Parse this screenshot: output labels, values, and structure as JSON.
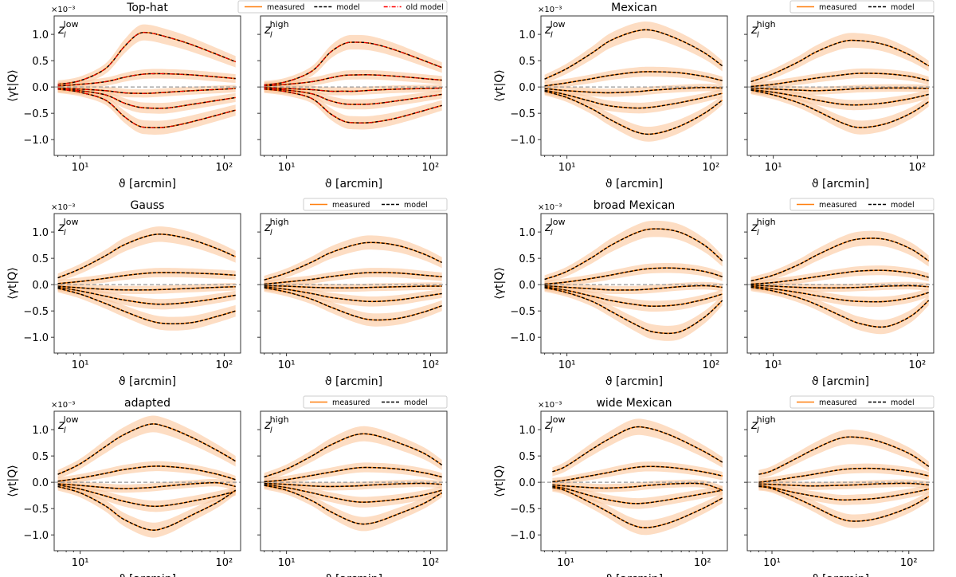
{
  "chart_data": {
    "type": "line",
    "axis_common": {
      "xlabel": "ϑ [arcmin]",
      "ylabel": "⟨γt|Q⟩",
      "y_multiplier": "×10⁻³",
      "x_scale": "log",
      "x_ticks": [
        "10¹",
        "10²"
      ],
      "y_ticks": [
        "1.0",
        "0.5",
        "0.0",
        "−0.5",
        "−1.0"
      ],
      "y_tick_values": [
        1.0,
        0.5,
        0.0,
        -0.5,
        -1.0
      ],
      "ylim": [
        -1.3,
        1.35
      ],
      "zero_line": "dashed gray",
      "grid": false
    },
    "colors": {
      "measured": "#ff7f0e",
      "band": "#fcc79b",
      "model": "#000000",
      "old_model": "#ff0000",
      "zero_line": "#999999"
    },
    "groups": [
      {
        "title": "Top-hat",
        "legend": [
          "measured",
          "model",
          "old model"
        ],
        "xlim": [
          6.6,
          130
        ],
        "x": [
          7,
          10,
          15,
          20,
          25,
          30,
          40,
          60,
          120
        ],
        "panels": [
          {
            "z_label": "z",
            "z_sub": "l",
            "z_sup": "low",
            "curves": [
              [
                0.05,
                0.12,
                0.35,
                0.75,
                1.0,
                1.03,
                0.95,
                0.8,
                0.48
              ],
              [
                0.02,
                0.05,
                0.1,
                0.18,
                0.23,
                0.25,
                0.25,
                0.23,
                0.16
              ],
              [
                -0.02,
                -0.04,
                -0.07,
                -0.11,
                -0.12,
                -0.12,
                -0.1,
                -0.07,
                -0.03
              ],
              [
                -0.03,
                -0.07,
                -0.15,
                -0.3,
                -0.38,
                -0.4,
                -0.4,
                -0.33,
                -0.2
              ],
              [
                -0.04,
                -0.1,
                -0.25,
                -0.55,
                -0.73,
                -0.77,
                -0.76,
                -0.66,
                -0.44
              ]
            ]
          },
          {
            "z_label": "z",
            "z_sub": "l",
            "z_sup": "high",
            "curves": [
              [
                0.04,
                0.1,
                0.3,
                0.65,
                0.82,
                0.85,
                0.82,
                0.68,
                0.37
              ],
              [
                0.02,
                0.05,
                0.1,
                0.17,
                0.22,
                0.23,
                0.23,
                0.2,
                0.13
              ],
              [
                -0.01,
                -0.03,
                -0.05,
                -0.08,
                -0.08,
                -0.08,
                -0.06,
                -0.04,
                -0.02
              ],
              [
                -0.03,
                -0.06,
                -0.13,
                -0.26,
                -0.32,
                -0.33,
                -0.32,
                -0.26,
                -0.14
              ],
              [
                -0.04,
                -0.09,
                -0.22,
                -0.5,
                -0.65,
                -0.68,
                -0.67,
                -0.58,
                -0.35
              ]
            ]
          }
        ]
      },
      {
        "title": "Mexican",
        "legend": [
          "measured",
          "model"
        ],
        "xlim": [
          6.6,
          130
        ],
        "x": [
          7,
          10,
          15,
          20,
          30,
          40,
          60,
          90,
          120
        ],
        "panels": [
          {
            "z_label": "z",
            "z_sub": "l",
            "z_sup": "low",
            "curves": [
              [
                0.15,
                0.35,
                0.65,
                0.88,
                1.06,
                1.07,
                0.9,
                0.65,
                0.4
              ],
              [
                0.02,
                0.08,
                0.16,
                0.22,
                0.28,
                0.29,
                0.27,
                0.2,
                0.12
              ],
              [
                -0.03,
                -0.07,
                -0.1,
                -0.11,
                -0.09,
                -0.06,
                -0.03,
                -0.01,
                -0.02
              ],
              [
                -0.06,
                -0.15,
                -0.28,
                -0.36,
                -0.4,
                -0.38,
                -0.3,
                -0.2,
                -0.12
              ],
              [
                -0.08,
                -0.2,
                -0.42,
                -0.62,
                -0.85,
                -0.89,
                -0.75,
                -0.5,
                -0.25
              ]
            ]
          },
          {
            "z_label": "z",
            "z_sub": "l",
            "z_sup": "high",
            "curves": [
              [
                0.1,
                0.25,
                0.48,
                0.67,
                0.86,
                0.88,
                0.8,
                0.6,
                0.4
              ],
              [
                0.01,
                0.05,
                0.12,
                0.17,
                0.23,
                0.26,
                0.25,
                0.2,
                0.12
              ],
              [
                -0.02,
                -0.04,
                -0.06,
                -0.07,
                -0.05,
                -0.03,
                -0.02,
                -0.02,
                -0.03
              ],
              [
                -0.05,
                -0.1,
                -0.18,
                -0.25,
                -0.33,
                -0.34,
                -0.3,
                -0.22,
                -0.14
              ],
              [
                -0.06,
                -0.15,
                -0.3,
                -0.45,
                -0.68,
                -0.77,
                -0.7,
                -0.5,
                -0.28
              ]
            ]
          }
        ]
      },
      {
        "title": "Gauss",
        "legend": [
          "measured",
          "model"
        ],
        "xlim": [
          6.6,
          130
        ],
        "x": [
          7,
          10,
          15,
          20,
          30,
          40,
          60,
          90,
          120
        ],
        "panels": [
          {
            "z_label": "z",
            "z_sub": "l",
            "z_sup": "low",
            "curves": [
              [
                0.13,
                0.3,
                0.55,
                0.75,
                0.93,
                0.95,
                0.85,
                0.68,
                0.53
              ],
              [
                0.02,
                0.06,
                0.12,
                0.17,
                0.22,
                0.23,
                0.22,
                0.2,
                0.18
              ],
              [
                -0.03,
                -0.06,
                -0.09,
                -0.1,
                -0.1,
                -0.09,
                -0.07,
                -0.05,
                -0.04
              ],
              [
                -0.05,
                -0.12,
                -0.22,
                -0.29,
                -0.36,
                -0.37,
                -0.33,
                -0.26,
                -0.2
              ],
              [
                -0.07,
                -0.18,
                -0.36,
                -0.5,
                -0.68,
                -0.74,
                -0.72,
                -0.6,
                -0.5
              ]
            ]
          },
          {
            "z_label": "z",
            "z_sub": "l",
            "z_sup": "high",
            "curves": [
              [
                0.09,
                0.22,
                0.43,
                0.6,
                0.76,
                0.8,
                0.74,
                0.58,
                0.42
              ],
              [
                0.01,
                0.05,
                0.1,
                0.15,
                0.21,
                0.23,
                0.22,
                0.18,
                0.15
              ],
              [
                -0.02,
                -0.03,
                -0.05,
                -0.06,
                -0.06,
                -0.05,
                -0.04,
                -0.03,
                -0.03
              ],
              [
                -0.04,
                -0.09,
                -0.17,
                -0.24,
                -0.3,
                -0.32,
                -0.29,
                -0.22,
                -0.17
              ],
              [
                -0.06,
                -0.14,
                -0.28,
                -0.42,
                -0.6,
                -0.67,
                -0.64,
                -0.52,
                -0.4
              ]
            ]
          }
        ]
      },
      {
        "title": "broad Mexican",
        "legend": [
          "measured",
          "model"
        ],
        "xlim": [
          6.6,
          130
        ],
        "x": [
          7,
          10,
          15,
          20,
          30,
          40,
          60,
          90,
          120
        ],
        "panels": [
          {
            "z_label": "z",
            "z_sub": "l",
            "z_sup": "low",
            "curves": [
              [
                0.1,
                0.25,
                0.52,
                0.74,
                0.98,
                1.06,
                1.0,
                0.75,
                0.45
              ],
              [
                0.01,
                0.05,
                0.12,
                0.18,
                0.27,
                0.31,
                0.31,
                0.25,
                0.15
              ],
              [
                -0.02,
                -0.05,
                -0.08,
                -0.1,
                -0.1,
                -0.08,
                -0.04,
                -0.02,
                -0.05
              ],
              [
                -0.04,
                -0.11,
                -0.22,
                -0.3,
                -0.38,
                -0.41,
                -0.38,
                -0.28,
                -0.18
              ],
              [
                -0.06,
                -0.15,
                -0.32,
                -0.5,
                -0.76,
                -0.9,
                -0.9,
                -0.62,
                -0.3
              ]
            ]
          },
          {
            "z_label": "z",
            "z_sub": "l",
            "z_sup": "high",
            "curves": [
              [
                0.07,
                0.18,
                0.38,
                0.56,
                0.78,
                0.87,
                0.86,
                0.68,
                0.45
              ],
              [
                0.01,
                0.04,
                0.1,
                0.15,
                0.22,
                0.26,
                0.27,
                0.22,
                0.14
              ],
              [
                -0.01,
                -0.03,
                -0.05,
                -0.06,
                -0.06,
                -0.05,
                -0.03,
                -0.02,
                -0.04
              ],
              [
                -0.03,
                -0.08,
                -0.15,
                -0.21,
                -0.29,
                -0.32,
                -0.32,
                -0.25,
                -0.15
              ],
              [
                -0.05,
                -0.12,
                -0.25,
                -0.38,
                -0.6,
                -0.74,
                -0.8,
                -0.6,
                -0.3
              ]
            ]
          }
        ]
      },
      {
        "title": "adapted",
        "legend": [
          "measured",
          "model"
        ],
        "xlim": [
          6.6,
          130
        ],
        "x": [
          7,
          10,
          15,
          20,
          30,
          40,
          60,
          90,
          120
        ],
        "panels": [
          {
            "z_label": "z",
            "z_sub": "l",
            "z_sup": "low",
            "curves": [
              [
                0.15,
                0.35,
                0.68,
                0.9,
                1.1,
                1.05,
                0.85,
                0.6,
                0.4
              ],
              [
                0.02,
                0.08,
                0.17,
                0.24,
                0.3,
                0.3,
                0.25,
                0.15,
                0.05
              ],
              [
                -0.03,
                -0.06,
                -0.1,
                -0.12,
                -0.1,
                -0.07,
                -0.03,
                -0.01,
                -0.08
              ],
              [
                -0.05,
                -0.13,
                -0.26,
                -0.36,
                -0.45,
                -0.44,
                -0.36,
                -0.26,
                -0.17
              ],
              [
                -0.08,
                -0.2,
                -0.45,
                -0.7,
                -0.9,
                -0.85,
                -0.62,
                -0.38,
                -0.15
              ]
            ]
          },
          {
            "z_label": "z",
            "z_sub": "l",
            "z_sup": "high",
            "curves": [
              [
                0.1,
                0.25,
                0.5,
                0.7,
                0.9,
                0.9,
                0.75,
                0.55,
                0.33
              ],
              [
                0.01,
                0.05,
                0.13,
                0.19,
                0.27,
                0.28,
                0.25,
                0.18,
                0.1
              ],
              [
                -0.02,
                -0.04,
                -0.07,
                -0.08,
                -0.07,
                -0.05,
                -0.03,
                -0.02,
                -0.04
              ],
              [
                -0.04,
                -0.1,
                -0.2,
                -0.28,
                -0.37,
                -0.37,
                -0.32,
                -0.24,
                -0.15
              ],
              [
                -0.06,
                -0.15,
                -0.35,
                -0.55,
                -0.77,
                -0.77,
                -0.6,
                -0.4,
                -0.2
              ]
            ]
          }
        ]
      },
      {
        "title": "wide Mexican",
        "legend": [
          "measured",
          "model"
        ],
        "xlim": [
          6.6,
          152
        ],
        "x": [
          8,
          10,
          15,
          20,
          30,
          40,
          60,
          100,
          140
        ],
        "panels": [
          {
            "z_label": "z",
            "z_sub": "l",
            "z_sup": "low",
            "curves": [
              [
                0.2,
                0.3,
                0.6,
                0.8,
                1.03,
                1.03,
                0.88,
                0.6,
                0.38
              ],
              [
                0.01,
                0.04,
                0.12,
                0.18,
                0.27,
                0.3,
                0.28,
                0.2,
                0.12
              ],
              [
                -0.05,
                -0.07,
                -0.1,
                -0.11,
                -0.09,
                -0.06,
                -0.03,
                -0.03,
                -0.15
              ],
              [
                -0.08,
                -0.12,
                -0.25,
                -0.33,
                -0.4,
                -0.39,
                -0.32,
                -0.22,
                -0.15
              ],
              [
                -0.1,
                -0.16,
                -0.38,
                -0.55,
                -0.8,
                -0.86,
                -0.75,
                -0.5,
                -0.3
              ]
            ]
          },
          {
            "z_label": "z",
            "z_sub": "l",
            "z_sup": "high",
            "curves": [
              [
                0.15,
                0.22,
                0.45,
                0.62,
                0.82,
                0.86,
                0.78,
                0.55,
                0.3
              ],
              [
                0.0,
                0.03,
                0.1,
                0.15,
                0.23,
                0.26,
                0.26,
                0.2,
                0.12
              ],
              [
                -0.03,
                -0.04,
                -0.06,
                -0.07,
                -0.06,
                -0.05,
                -0.03,
                -0.02,
                -0.05
              ],
              [
                -0.06,
                -0.1,
                -0.2,
                -0.26,
                -0.33,
                -0.33,
                -0.3,
                -0.21,
                -0.13
              ],
              [
                -0.08,
                -0.12,
                -0.3,
                -0.45,
                -0.67,
                -0.74,
                -0.68,
                -0.48,
                -0.27
              ]
            ]
          }
        ]
      }
    ]
  }
}
